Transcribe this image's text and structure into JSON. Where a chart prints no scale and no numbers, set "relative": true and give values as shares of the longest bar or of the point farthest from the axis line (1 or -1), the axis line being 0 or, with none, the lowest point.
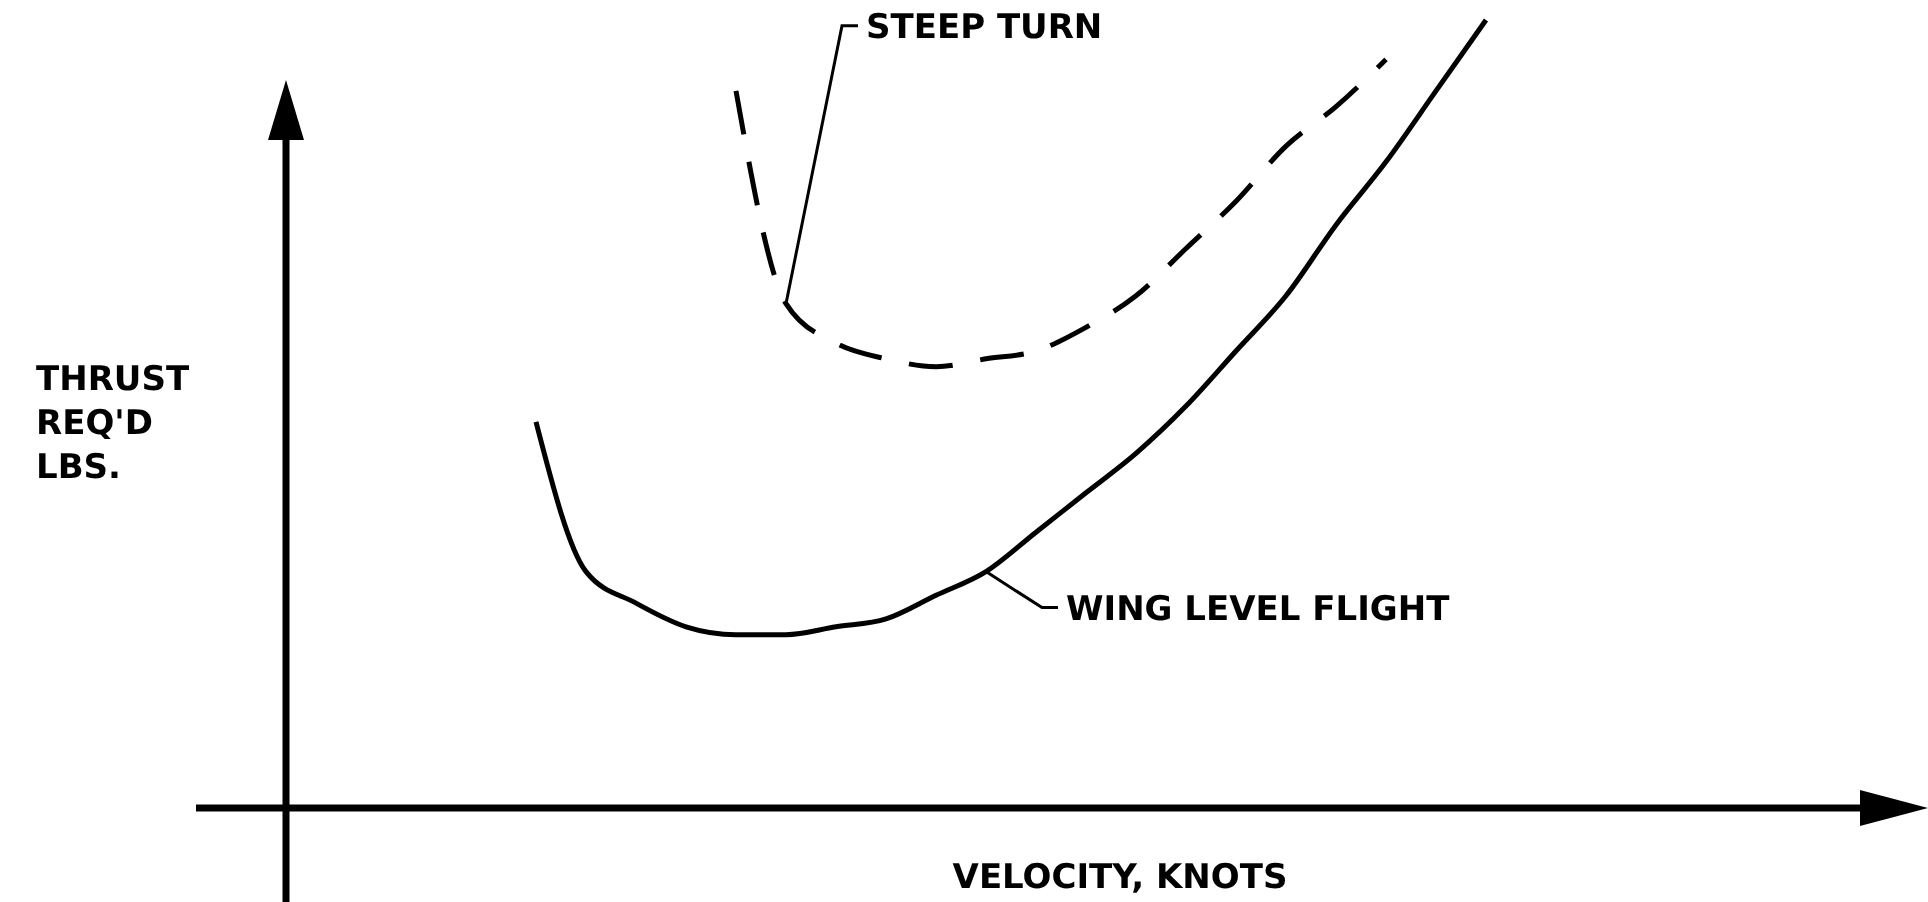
{
  "chart_data": {
    "type": "line",
    "relative": true,
    "xlabel": "VELOCITY, KNOTS",
    "ylabel": "THRUST\nREQ'D\nLBS.",
    "marker": "none",
    "categories": [
      null,
      null,
      null,
      null,
      null,
      null,
      null,
      null,
      null,
      null,
      null,
      null,
      null,
      null,
      null,
      null,
      null,
      null,
      null,
      null,
      null,
      null,
      null,
      null,
      null,
      null,
      null,
      null,
      null,
      null,
      null,
      null,
      null
    ],
    "series": [
      {
        "name": "STEEP TURN",
        "color": "#000000",
        "line_style": "dashed",
        "values": [
          null,
          null,
          null,
          null,
          null,
          null,
          null,
          null,
          null,
          0.91,
          0.64,
          0.59,
          0.57,
          0.56,
          0.57,
          0.58,
          0.61,
          0.65,
          0.71,
          0.77,
          0.84,
          0.89,
          0.95,
          null,
          null,
          null,
          null,
          null,
          null,
          null,
          null,
          null,
          null
        ]
      },
      {
        "name": "WING LEVEL FLIGHT",
        "color": "#000000",
        "line_style": "solid",
        "values": [
          null,
          null,
          null,
          null,
          null,
          0.49,
          0.3,
          0.26,
          0.23,
          0.22,
          0.22,
          0.23,
          0.24,
          0.27,
          0.3,
          0.35,
          0.4,
          0.45,
          0.51,
          0.58,
          0.65,
          0.74,
          0.82,
          0.91,
          1,
          null,
          null,
          null,
          null,
          null,
          null,
          null,
          null
        ]
      }
    ]
  }
}
